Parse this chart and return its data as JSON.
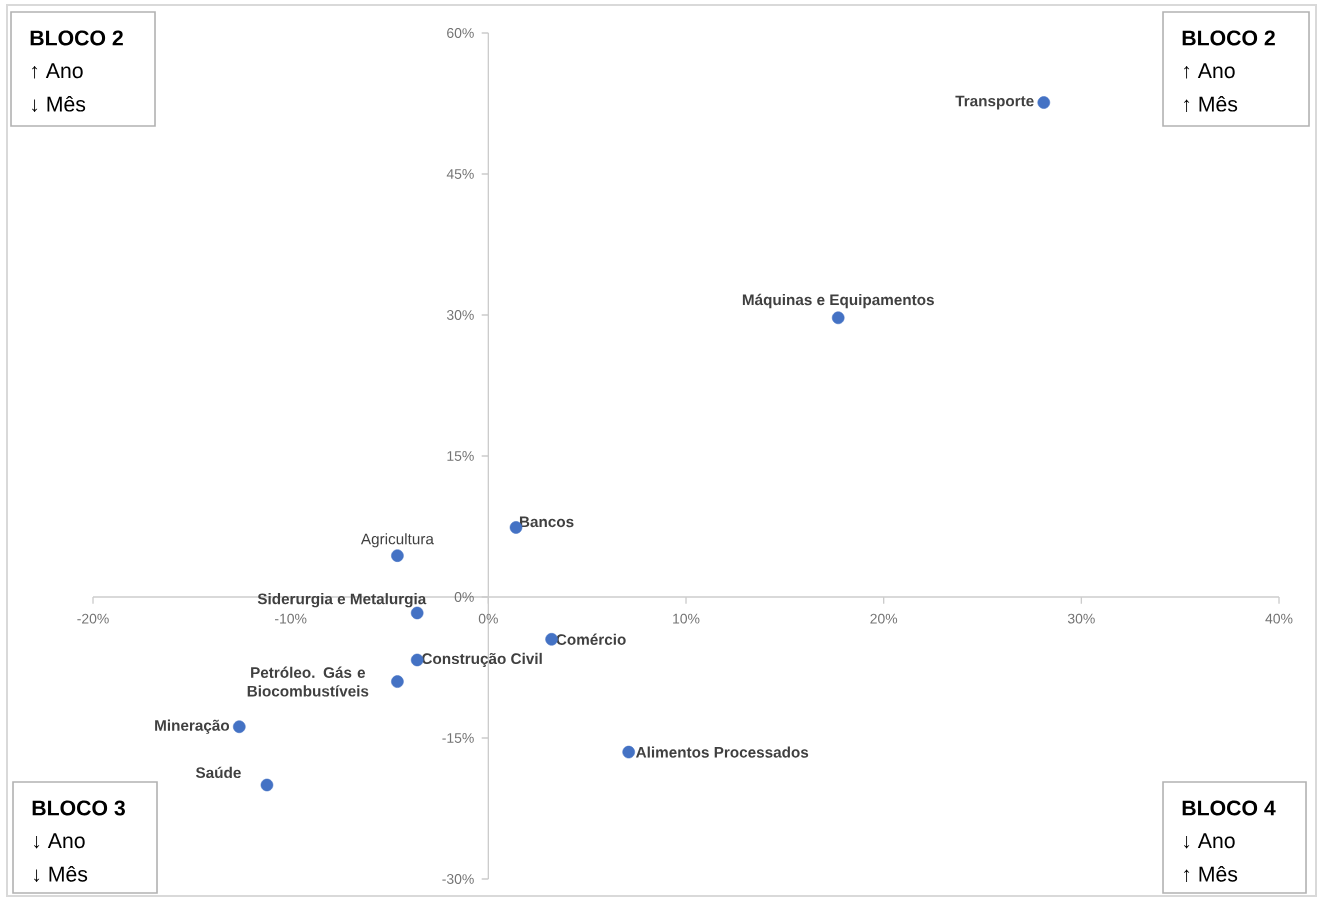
{
  "chart_data": {
    "type": "scatter",
    "marker": "circle",
    "xlim": [
      -20,
      40
    ],
    "ylim": [
      -30,
      60
    ],
    "xticks": [
      {
        "value": -20,
        "label": "-20%"
      },
      {
        "value": -10,
        "label": "-10%"
      },
      {
        "value": 0,
        "label": "0%"
      },
      {
        "value": 10,
        "label": "10%"
      },
      {
        "value": 20,
        "label": "20%"
      },
      {
        "value": 30,
        "label": "30%"
      },
      {
        "value": 40,
        "label": "40%"
      }
    ],
    "yticks": [
      {
        "value": -30,
        "label": "-30%"
      },
      {
        "value": -15,
        "label": "-15%"
      },
      {
        "value": 0,
        "label": "0%"
      },
      {
        "value": 15,
        "label": "15%"
      },
      {
        "value": 30,
        "label": "30%"
      },
      {
        "value": 45,
        "label": "45%"
      },
      {
        "value": 60,
        "label": "60%"
      }
    ],
    "series": [
      {
        "name": "Transporte",
        "color": "#4472c4",
        "x": [
          28.1
        ],
        "values": [
          52.6
        ]
      },
      {
        "name": "Máquinas e Equipamentos",
        "color": "#4472c4",
        "x": [
          17.7
        ],
        "values": [
          29.7
        ]
      },
      {
        "name": "Bancos",
        "color": "#4472c4",
        "x": [
          1.4
        ],
        "values": [
          7.4
        ]
      },
      {
        "name": "Agricultura",
        "color": "#4472c4",
        "x": [
          -4.6
        ],
        "values": [
          4.4
        ]
      },
      {
        "name": "Siderurgia e Metalurgia",
        "color": "#4472c4",
        "x": [
          -3.6
        ],
        "values": [
          -1.7
        ]
      },
      {
        "name": "Comércio",
        "color": "#4472c4",
        "x": [
          3.2
        ],
        "values": [
          -4.5
        ]
      },
      {
        "name": "Construção Civil",
        "color": "#4472c4",
        "x": [
          -3.6
        ],
        "values": [
          -6.7
        ]
      },
      {
        "name": "Petróleo. Gás e Biocombustíveis",
        "color": "#4472c4",
        "x": [
          -4.6
        ],
        "values": [
          -9.0
        ]
      },
      {
        "name": "Mineração",
        "color": "#4472c4",
        "x": [
          -12.6
        ],
        "values": [
          -13.8
        ]
      },
      {
        "name": "Saúde",
        "color": "#4472c4",
        "x": [
          -11.2
        ],
        "values": [
          -20.0
        ]
      },
      {
        "name": "Alimentos Processados",
        "color": "#4472c4",
        "x": [
          7.1
        ],
        "values": [
          -16.5
        ]
      }
    ],
    "annotations": [
      "BLOCO 2",
      "↑ Ano",
      "↓ Mês",
      "BLOCO 2",
      "↑ Ano",
      "↑ Mês",
      "BLOCO 3",
      "↓ Ano",
      "↓ Mês",
      "BLOCO 4",
      "↓ Ano",
      "↑ Mês"
    ]
  }
}
